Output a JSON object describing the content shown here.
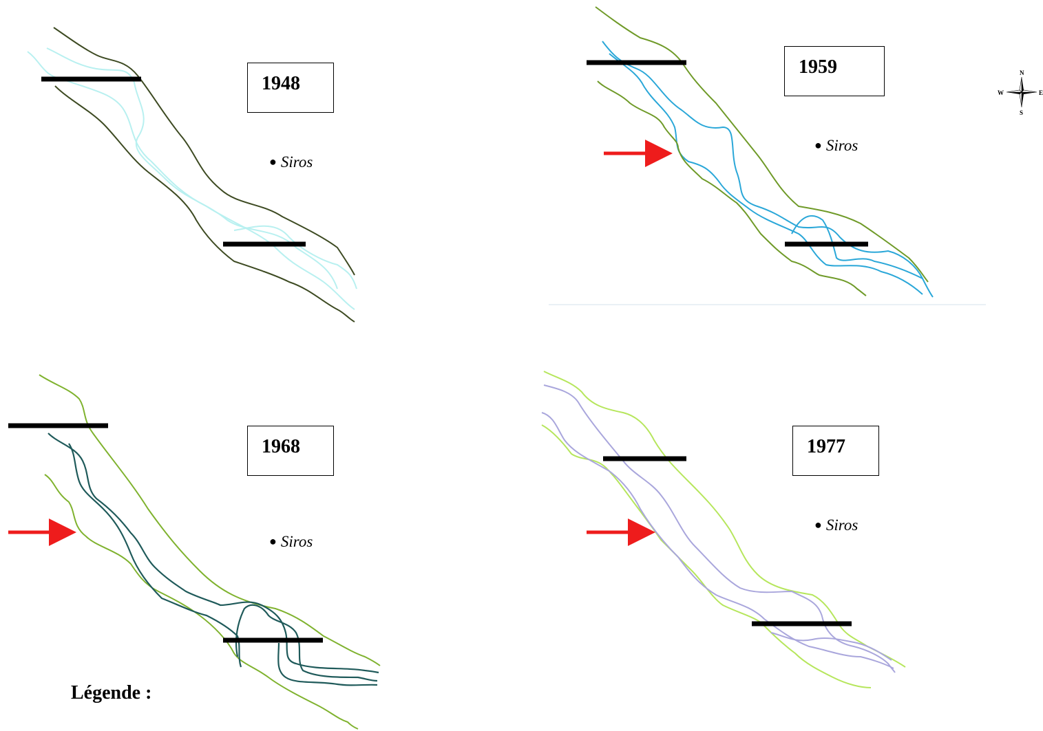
{
  "panels": [
    {
      "year": "1948",
      "town": "Siros"
    },
    {
      "year": "1959",
      "town": "Siros"
    },
    {
      "year": "1968",
      "town": "Siros"
    },
    {
      "year": "1977",
      "town": "Siros"
    }
  ],
  "legend": {
    "title": "Légende :"
  },
  "compass": {
    "n": "N",
    "s": "S",
    "e": "E",
    "w": "W"
  },
  "colors": {
    "bank_1948": "#3d4a22",
    "channel_1948": "#b8f0f0",
    "bank_1959": "#6f9a28",
    "channel_1959": "#2aa7d8",
    "bank_1968": "#7fb22e",
    "channel_1968": "#1f5a5a",
    "bank_1977": "#b6e65c",
    "channel_1977": "#a9a6dc",
    "section_line": "#000000",
    "arrow": "#ee1c1c"
  }
}
